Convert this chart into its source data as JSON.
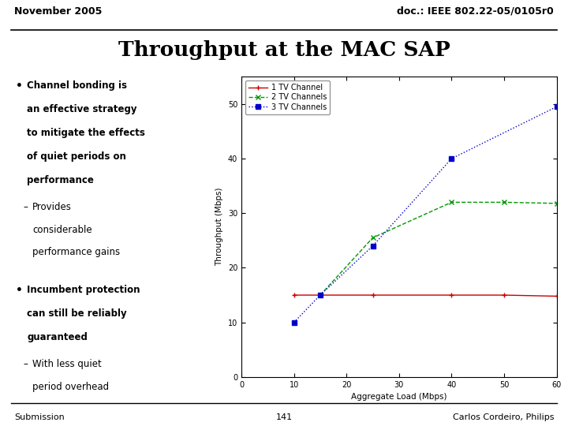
{
  "slide_title": "Throughput at the MAC SAP",
  "header_left": "November 2005",
  "header_right": "doc.: IEEE 802.22-05/0105r0",
  "footer_left": "Submission",
  "footer_center": "141",
  "footer_right": "Carlos Cordeiro, Philips",
  "bullet1_lines": [
    "Channel bonding is",
    "an effective strategy",
    "to mitigate the effects",
    "of quiet periods on",
    "performance"
  ],
  "sub_bullet1_lines": [
    "Provides",
    "considerable",
    "performance gains"
  ],
  "bullet2_lines": [
    "Incumbent protection",
    "can still be reliably",
    "guaranteed"
  ],
  "sub_bullet2_lines": [
    "With less quiet",
    "period overhead"
  ],
  "chart": {
    "xlabel": "Aggregate Load (Mbps)",
    "ylabel": "Throughput (Mbps)",
    "xlim": [
      0,
      60
    ],
    "ylim": [
      0,
      55
    ],
    "xticks": [
      0,
      10,
      20,
      30,
      40,
      50,
      60
    ],
    "yticks": [
      0,
      10,
      20,
      30,
      40,
      50
    ],
    "series": [
      {
        "label": "1 TV Channel",
        "color": "#cc0000",
        "linestyle": "-",
        "marker": "+",
        "x": [
          10,
          15,
          25,
          40,
          50,
          60
        ],
        "y": [
          15.0,
          15.0,
          15.0,
          15.0,
          15.0,
          14.8
        ]
      },
      {
        "label": "2 TV Channels",
        "color": "#009900",
        "linestyle": "--",
        "marker": "x",
        "x": [
          15,
          25,
          40,
          50,
          60
        ],
        "y": [
          15.0,
          25.5,
          32.0,
          32.0,
          31.8
        ]
      },
      {
        "label": "3 TV Channels",
        "color": "#0000cc",
        "linestyle": ":",
        "marker": "s",
        "x": [
          10,
          15,
          25,
          40,
          60
        ],
        "y": [
          10.0,
          15.0,
          24.0,
          40.0,
          49.5
        ]
      }
    ]
  },
  "bg_color": "#ffffff",
  "text_color": "#000000"
}
